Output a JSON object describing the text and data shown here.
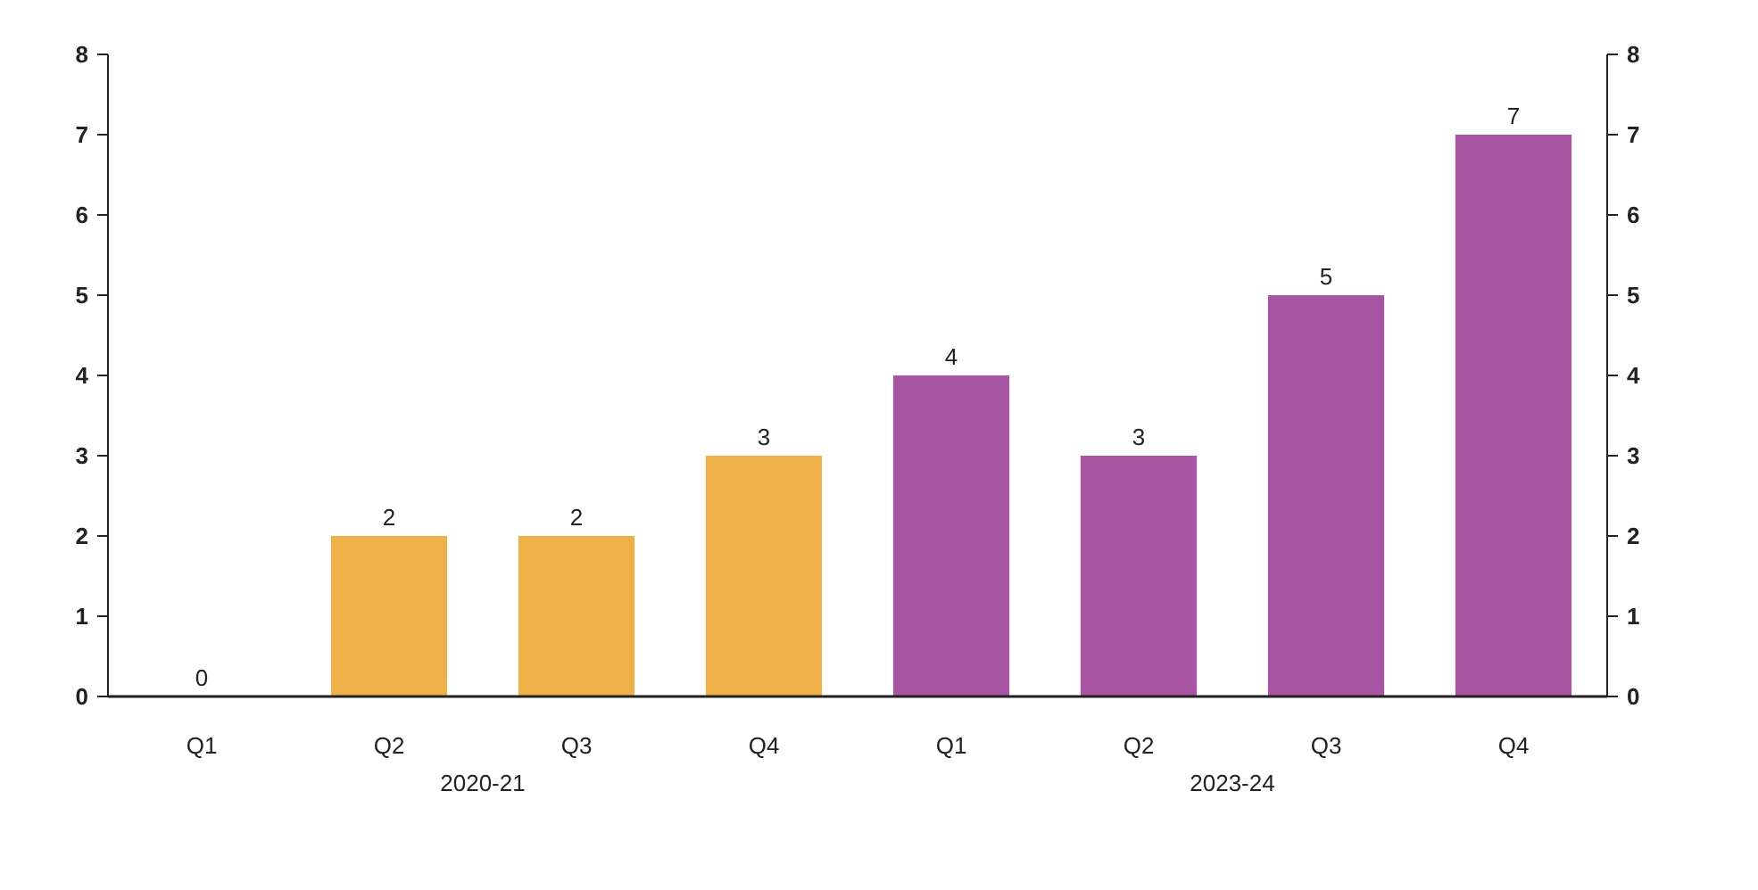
{
  "chart_data": {
    "type": "bar",
    "categories": [
      "Q1",
      "Q2",
      "Q3",
      "Q4",
      "Q1",
      "Q2",
      "Q3",
      "Q4"
    ],
    "values": [
      0,
      2,
      2,
      3,
      4,
      3,
      5,
      7
    ],
    "colors": [
      "#eeb14a",
      "#eeb14a",
      "#eeb14a",
      "#eeb14a",
      "#a855a3",
      "#a855a3",
      "#a855a3",
      "#a855a3"
    ],
    "annotations": [
      "2020-21",
      "2023-24"
    ],
    "ylim": [
      0,
      8
    ],
    "yticks": [
      0,
      1,
      2,
      3,
      4,
      5,
      6,
      7,
      8
    ],
    "y2lim": [
      0,
      8
    ],
    "y2ticks": [
      0,
      1,
      2,
      3,
      4,
      5,
      6,
      7,
      8
    ],
    "data_labels": true,
    "grid": false
  }
}
